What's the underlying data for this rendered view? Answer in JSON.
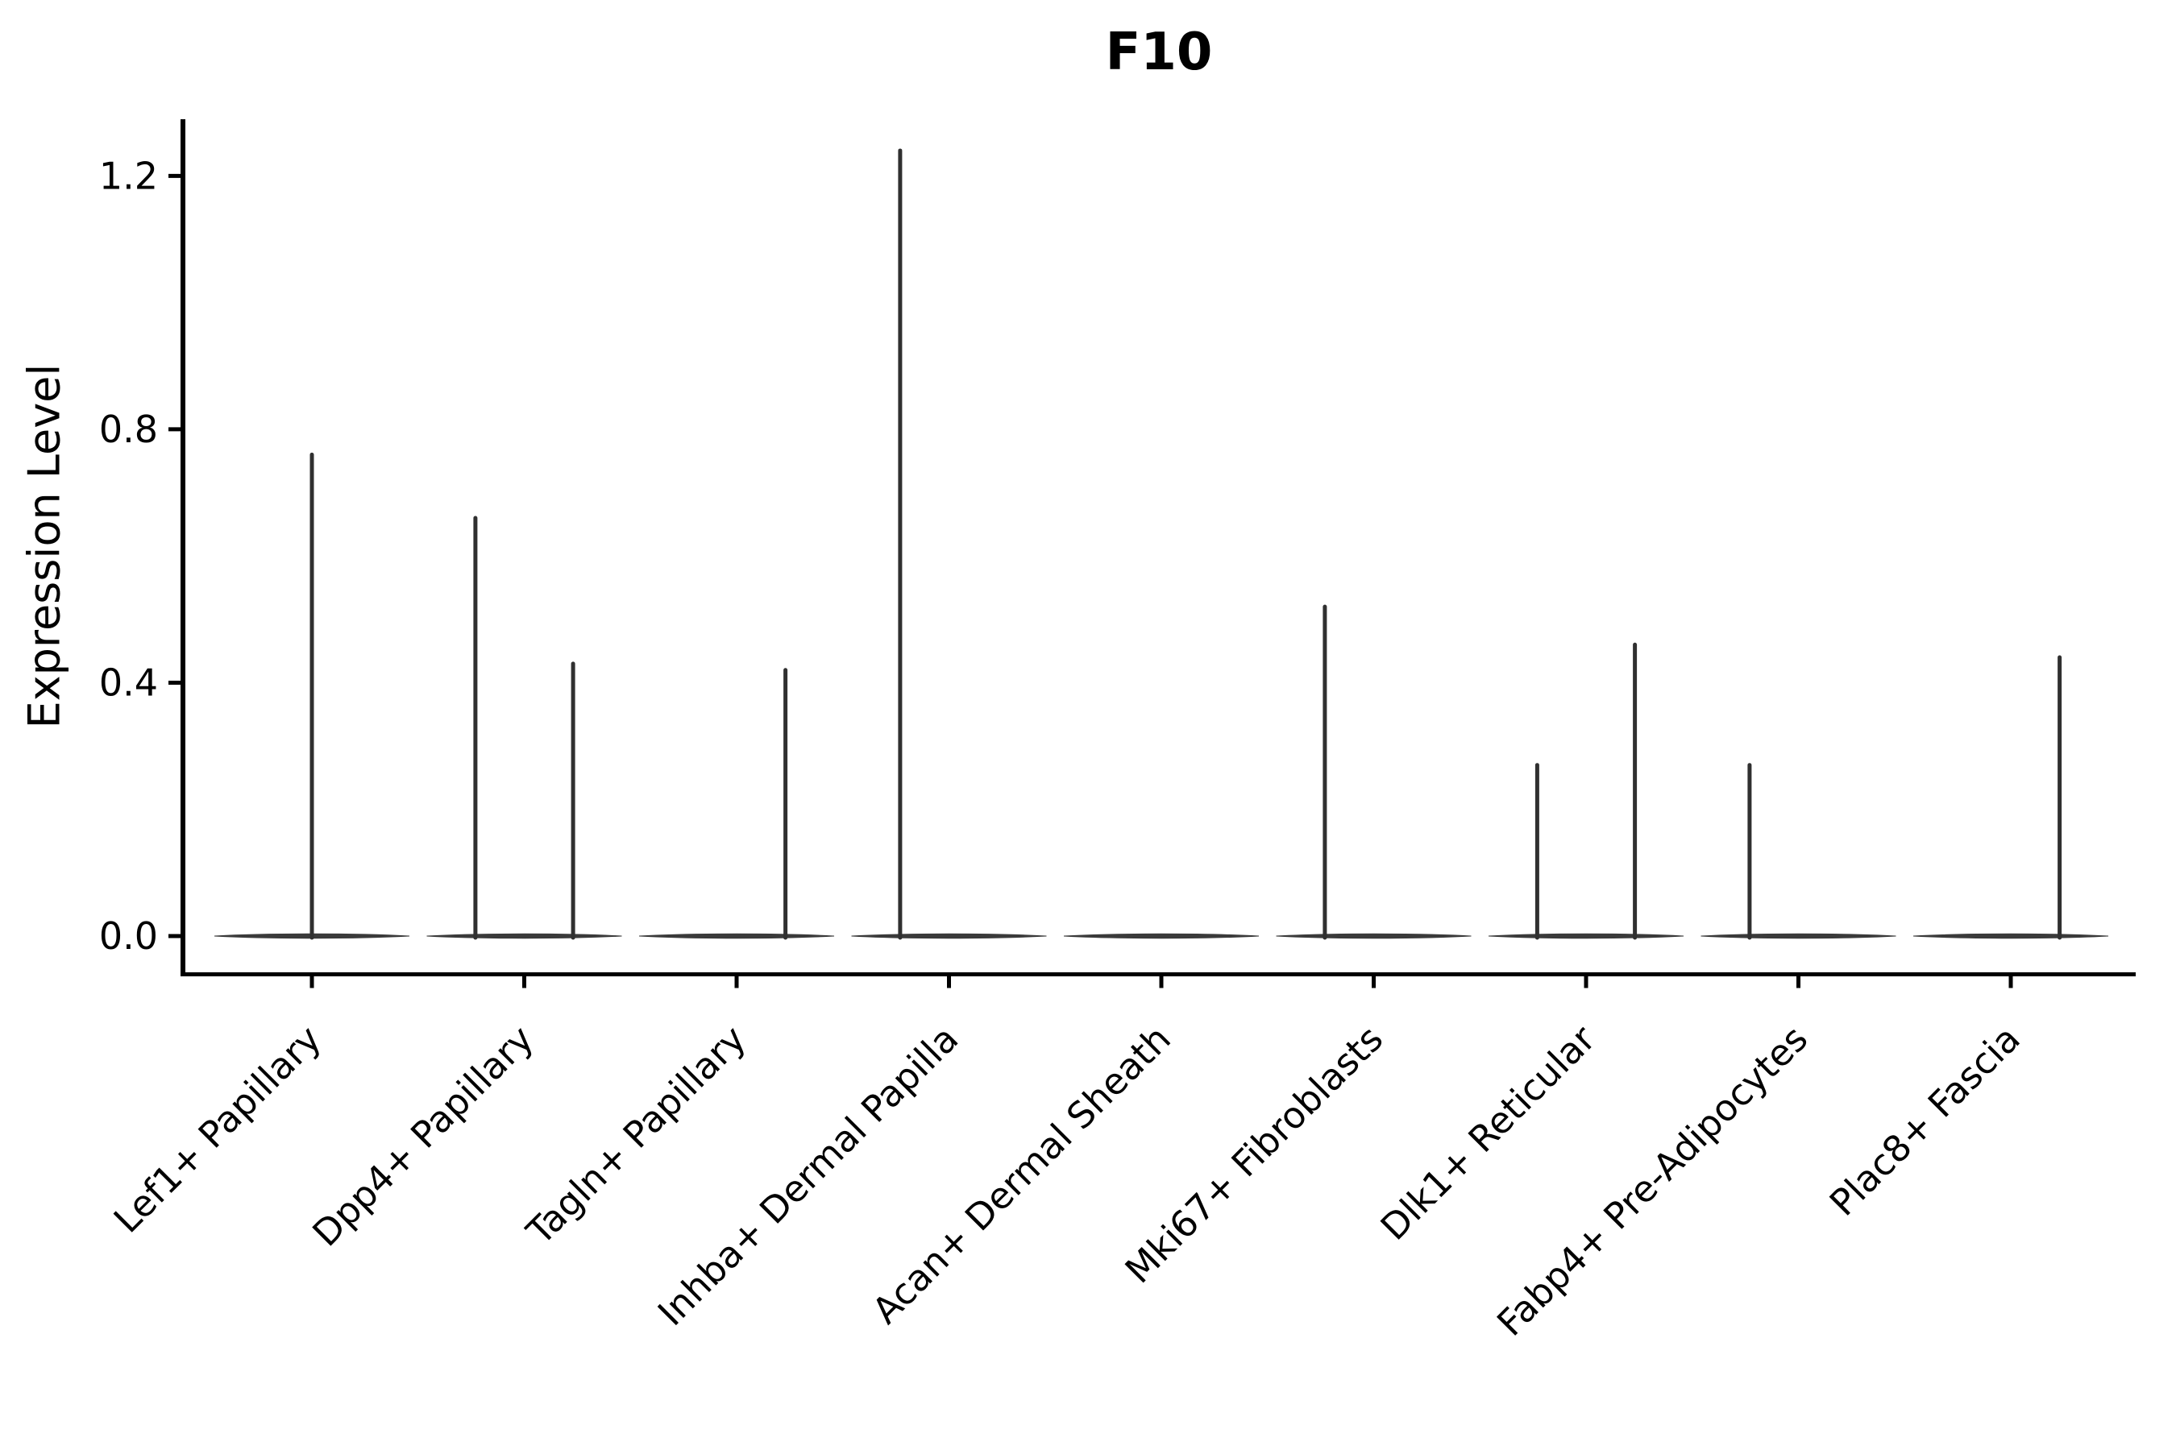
{
  "title": "F10",
  "chart_data": {
    "type": "violin",
    "title": "F10",
    "xlabel": "",
    "ylabel": "Expression Level",
    "ylim": [
      -0.06,
      1.29
    ],
    "yticks": [
      0.0,
      0.4,
      0.8,
      1.2
    ],
    "grid": false,
    "legend": null,
    "categories": [
      "Lef1+ Papillary",
      "Dpp4+ Papillary",
      "Tagln+ Papillary",
      "Inhba+ Dermal Papilla",
      "Acan+ Dermal Sheath",
      "Mki67+ Fibroblasts",
      "Dlk1+ Reticular",
      "Fabp4+ Pre-Adipocytes",
      "Plac8+ Fascia"
    ],
    "violins": [
      {
        "category": "Lef1+ Papillary",
        "baseline_value": 0.0,
        "spikes": [
          {
            "offset": 0.0,
            "max": 0.76
          }
        ]
      },
      {
        "category": "Dpp4+ Papillary",
        "baseline_value": 0.0,
        "spikes": [
          {
            "offset": -0.23,
            "max": 0.66
          },
          {
            "offset": 0.23,
            "max": 0.43
          }
        ]
      },
      {
        "category": "Tagln+ Papillary",
        "baseline_value": 0.0,
        "spikes": [
          {
            "offset": 0.23,
            "max": 0.42
          }
        ]
      },
      {
        "category": "Inhba+ Dermal Papilla",
        "baseline_value": 0.0,
        "spikes": [
          {
            "offset": -0.23,
            "max": 1.24
          }
        ]
      },
      {
        "category": "Acan+ Dermal Sheath",
        "baseline_value": 0.0,
        "spikes": []
      },
      {
        "category": "Mki67+ Fibroblasts",
        "baseline_value": 0.0,
        "spikes": [
          {
            "offset": -0.23,
            "max": 0.52
          }
        ]
      },
      {
        "category": "Dlk1+ Reticular",
        "baseline_value": 0.0,
        "spikes": [
          {
            "offset": -0.23,
            "max": 0.27
          },
          {
            "offset": 0.23,
            "max": 0.46
          }
        ]
      },
      {
        "category": "Fabp4+ Pre-Adipocytes",
        "baseline_value": 0.0,
        "spikes": [
          {
            "offset": -0.23,
            "max": 0.27
          }
        ]
      },
      {
        "category": "Plac8+ Fascia",
        "baseline_value": 0.0,
        "spikes": [
          {
            "offset": 0.23,
            "max": 0.44
          }
        ]
      }
    ],
    "colors": {
      "violin_line": "#303030",
      "violin_base": "#3a3a3a",
      "axis": "#000000"
    }
  }
}
